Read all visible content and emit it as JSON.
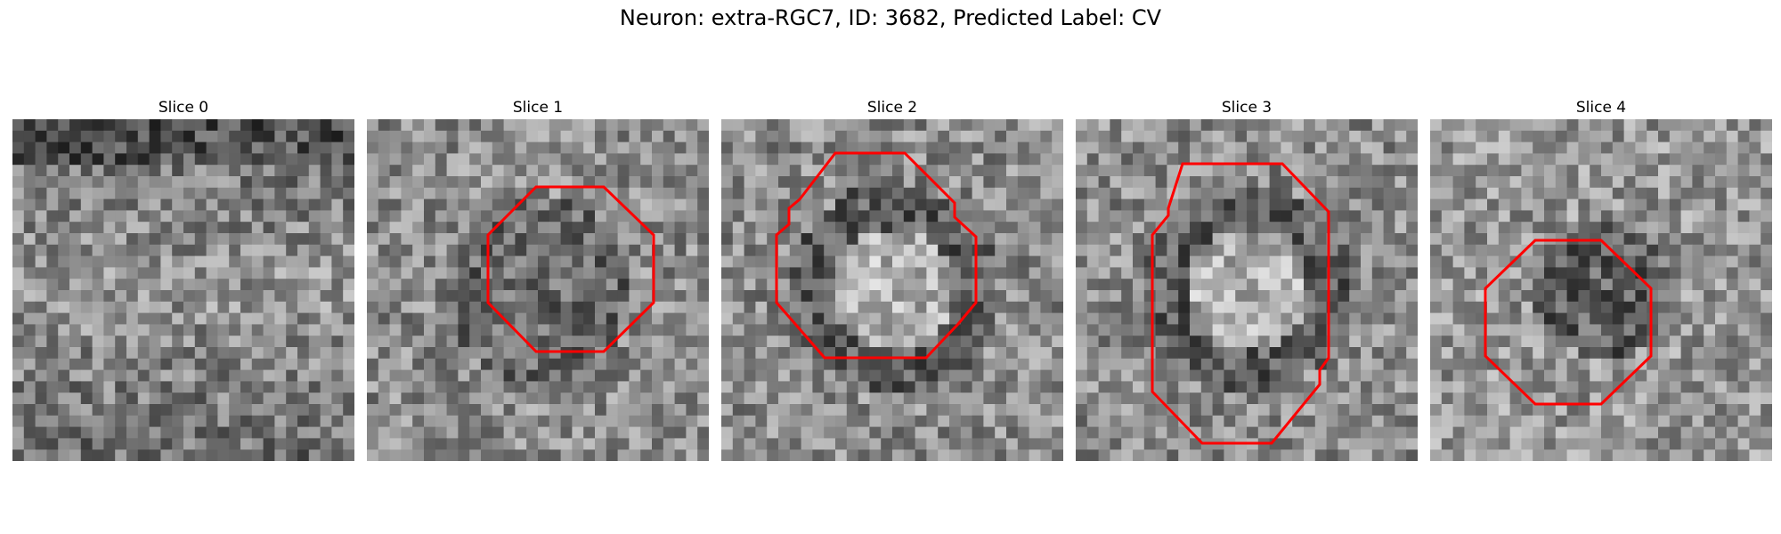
{
  "figure": {
    "title": "Neuron: extra-RGC7, ID: 3682, Predicted Label: CV",
    "outline_color": "#ff0000",
    "colormap": "grayscale"
  },
  "panels": [
    {
      "label": "Slice 0",
      "has_outline": false,
      "pattern": "noise-bright-center"
    },
    {
      "label": "Slice 1",
      "has_outline": true,
      "pattern": "dark-ring"
    },
    {
      "label": "Slice 2",
      "has_outline": true,
      "pattern": "bright-center-dark-ring"
    },
    {
      "label": "Slice 3",
      "has_outline": true,
      "pattern": "bright-center-dark-ring"
    },
    {
      "label": "Slice 4",
      "has_outline": true,
      "pattern": "dark-center"
    }
  ]
}
